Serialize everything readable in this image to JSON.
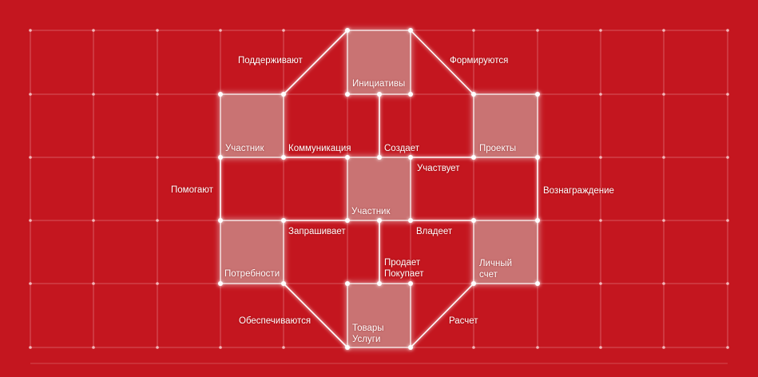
{
  "colors": {
    "background": "#c4161f",
    "grid": "#e58a8f",
    "line": "#ffffff",
    "box_fill": "#c97373"
  },
  "boxes": [
    {
      "id": "initiatives",
      "label": "Инициативы"
    },
    {
      "id": "participant_left",
      "label": "Участник"
    },
    {
      "id": "projects",
      "label": "Проекты"
    },
    {
      "id": "participant_center",
      "label": "Участник"
    },
    {
      "id": "needs",
      "label": "Потребности"
    },
    {
      "id": "personal_account",
      "label": "Личный\nсчет"
    },
    {
      "id": "goods_services",
      "label": "Товары\nУслуги"
    }
  ],
  "relations": [
    {
      "id": "support",
      "label": "Поддерживают"
    },
    {
      "id": "formed",
      "label": "Формируются"
    },
    {
      "id": "communication",
      "label": "Коммуникация"
    },
    {
      "id": "creates",
      "label": "Создает"
    },
    {
      "id": "participates",
      "label": "Участвует"
    },
    {
      "id": "help",
      "label": "Помогают"
    },
    {
      "id": "reward",
      "label": "Вознаграждение"
    },
    {
      "id": "requests",
      "label": "Запрашивает"
    },
    {
      "id": "owns",
      "label": "Владеет"
    },
    {
      "id": "sells_buys",
      "label": "Продает\nПокупает"
    },
    {
      "id": "provided",
      "label": "Обеспечиваются"
    },
    {
      "id": "settlement",
      "label": "Расчет"
    }
  ]
}
